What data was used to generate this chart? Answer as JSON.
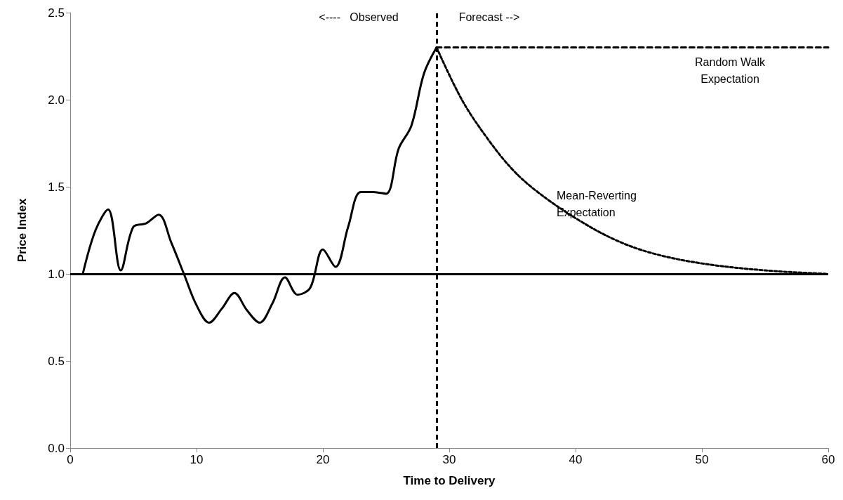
{
  "chart_data": {
    "type": "line",
    "xlabel": "Time to Delivery",
    "ylabel": "Price Index",
    "xlim": [
      0,
      60
    ],
    "xticks": [
      0,
      10,
      20,
      30,
      40,
      50,
      60
    ],
    "ylim": [
      0,
      2.5
    ],
    "yticks": [
      {
        "value": 0,
        "label": "0.0"
      },
      {
        "value": 0.5,
        "label": "0.5"
      },
      {
        "value": 1,
        "label": "1.0"
      },
      {
        "value": 1.5,
        "label": "1.5"
      },
      {
        "value": 2,
        "label": "2.0"
      },
      {
        "value": 2.5,
        "label": "2.5"
      }
    ],
    "grid": false,
    "marker": "none",
    "series": [
      {
        "color": "#000000",
        "line_style": "solid",
        "x": [
          1,
          2,
          3,
          4,
          5,
          6,
          7,
          8,
          9,
          10,
          11,
          12,
          13,
          14,
          15,
          16,
          17,
          18,
          19,
          20,
          21,
          22,
          23,
          24,
          25,
          26,
          27,
          28,
          29
        ],
        "values": [
          1.0,
          1.25,
          1.37,
          1.02,
          1.27,
          1.29,
          1.34,
          1.18,
          1.0,
          0.82,
          0.72,
          0.8,
          0.89,
          0.79,
          0.72,
          0.83,
          0.98,
          0.88,
          0.92,
          1.14,
          1.04,
          1.27,
          1.47,
          1.47,
          1.46,
          1.72,
          1.85,
          2.15,
          2.3
        ]
      },
      {
        "color": "#000000",
        "line_style": "dashed",
        "x": [
          29,
          60
        ],
        "values": [
          2.3,
          2.3
        ]
      },
      {
        "color": "#000000",
        "line_style": "dotted",
        "x": [
          29,
          31,
          33,
          35,
          37,
          40,
          43,
          46,
          50,
          55,
          60
        ],
        "values": [
          2.3,
          2.0,
          1.78,
          1.6,
          1.47,
          1.32,
          1.2,
          1.12,
          1.06,
          1.02,
          1.0
        ]
      }
    ],
    "ref_lines": [
      {
        "axis": "y",
        "value": 1,
        "color": "#000000",
        "line_style": "solid"
      },
      {
        "axis": "x",
        "value": 29,
        "color": "#000000",
        "line_style": "dashed"
      }
    ],
    "annotations": [
      "<----   Observed",
      "Forecast -->",
      "Random Walk\nExpectation",
      "Mean-Reverting\nExpectation"
    ]
  }
}
